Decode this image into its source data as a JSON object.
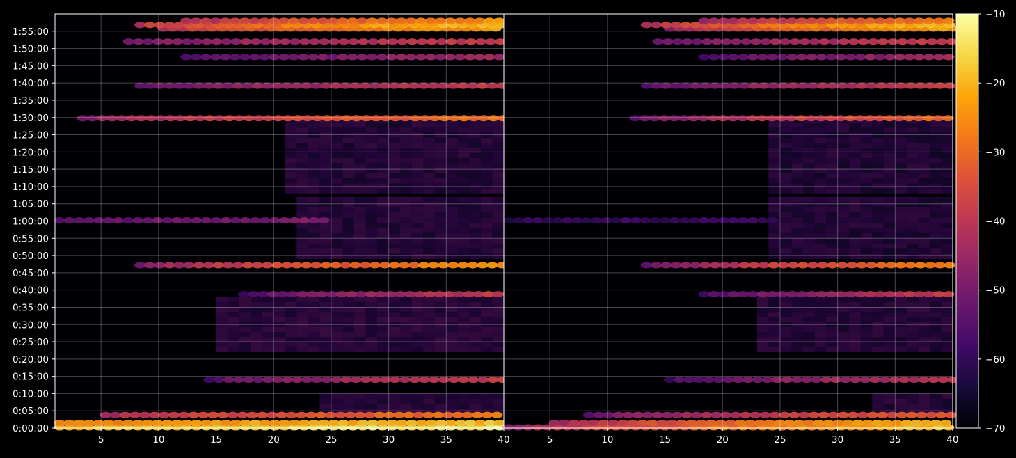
{
  "chart_data": {
    "type": "heatmap",
    "title": "",
    "colormap": "inferno",
    "background": "#000000",
    "grid": true,
    "xlim": [
      1,
      40
    ],
    "x_ticks": [
      5,
      10,
      15,
      20,
      25,
      30,
      35,
      40
    ],
    "y_ticks": [
      "0:00:00",
      "0:05:00",
      "0:10:00",
      "0:15:00",
      "0:20:00",
      "0:25:00",
      "0:30:00",
      "0:35:00",
      "0:40:00",
      "0:45:00",
      "0:50:00",
      "0:55:00",
      "1:00:00",
      "1:05:00",
      "1:10:00",
      "1:15:00",
      "1:20:00",
      "1:25:00",
      "1:30:00",
      "1:35:00",
      "1:40:00",
      "1:45:00",
      "1:50:00",
      "1:55:00"
    ],
    "colorbar": {
      "min": -70,
      "max": -10,
      "ticks": [
        -10,
        -20,
        -30,
        -40,
        -50,
        -60,
        -70
      ]
    },
    "panels": [
      {
        "name": "left",
        "bands": [
          {
            "t": 0.2,
            "x0": 1,
            "x1": 40,
            "peak": -12,
            "tail": -22
          },
          {
            "t": 1.5,
            "x0": 1,
            "x1": 40,
            "peak": -18,
            "tail": -28
          },
          {
            "t": 3.8,
            "x0": 5,
            "x1": 40,
            "peak": -28,
            "tail": -44
          },
          {
            "t": 14.0,
            "x0": 14,
            "x1": 40,
            "peak": -38,
            "tail": -56
          },
          {
            "t": 38.8,
            "x0": 17,
            "x1": 40,
            "peak": -38,
            "tail": -58
          },
          {
            "t": 47.2,
            "x0": 8,
            "x1": 40,
            "peak": -24,
            "tail": -50
          },
          {
            "t": 60.2,
            "x0": 1,
            "x1": 25,
            "peak": -48,
            "tail": -56
          },
          {
            "t": 89.8,
            "x0": 3,
            "x1": 40,
            "peak": -28,
            "tail": -50
          },
          {
            "t": 99.2,
            "x0": 8,
            "x1": 40,
            "peak": -38,
            "tail": -54
          },
          {
            "t": 107.5,
            "x0": 12,
            "x1": 40,
            "peak": -44,
            "tail": -58
          },
          {
            "t": 112.0,
            "x0": 7,
            "x1": 40,
            "peak": -38,
            "tail": -52
          },
          {
            "t": 115.8,
            "x0": 10,
            "x1": 40,
            "peak": -22,
            "tail": -42
          },
          {
            "t": 116.8,
            "x0": 8,
            "x1": 40,
            "peak": -18,
            "tail": -40
          },
          {
            "t": 118.0,
            "x0": 12,
            "x1": 40,
            "peak": -24,
            "tail": -44
          }
        ],
        "blocks": [
          {
            "t0": 4,
            "t1": 10,
            "x0": 24,
            "x1": 40,
            "level": -58
          },
          {
            "t0": 22,
            "t1": 38,
            "x0": 15,
            "x1": 40,
            "level": -57
          },
          {
            "t0": 49,
            "t1": 67,
            "x0": 22,
            "x1": 40,
            "level": -58
          },
          {
            "t0": 68,
            "t1": 90,
            "x0": 21,
            "x1": 40,
            "level": -58
          }
        ]
      },
      {
        "name": "right",
        "bands": [
          {
            "t": 0.2,
            "x0": 1,
            "x1": 40,
            "peak": -18,
            "tail": -48
          },
          {
            "t": 1.5,
            "x0": 5,
            "x1": 40,
            "peak": -20,
            "tail": -46
          },
          {
            "t": 3.8,
            "x0": 8,
            "x1": 40,
            "peak": -32,
            "tail": -54
          },
          {
            "t": 14.0,
            "x0": 15,
            "x1": 40,
            "peak": -40,
            "tail": -58
          },
          {
            "t": 38.8,
            "x0": 18,
            "x1": 40,
            "peak": -38,
            "tail": -58
          },
          {
            "t": 47.2,
            "x0": 13,
            "x1": 40,
            "peak": -26,
            "tail": -54
          },
          {
            "t": 60.2,
            "x0": 1,
            "x1": 25,
            "peak": -58,
            "tail": -62
          },
          {
            "t": 89.8,
            "x0": 12,
            "x1": 40,
            "peak": -30,
            "tail": -54
          },
          {
            "t": 99.2,
            "x0": 13,
            "x1": 40,
            "peak": -38,
            "tail": -56
          },
          {
            "t": 107.5,
            "x0": 18,
            "x1": 40,
            "peak": -44,
            "tail": -58
          },
          {
            "t": 112.0,
            "x0": 14,
            "x1": 40,
            "peak": -38,
            "tail": -54
          },
          {
            "t": 115.8,
            "x0": 15,
            "x1": 40,
            "peak": -22,
            "tail": -46
          },
          {
            "t": 116.8,
            "x0": 13,
            "x1": 40,
            "peak": -18,
            "tail": -44
          },
          {
            "t": 118.0,
            "x0": 18,
            "x1": 40,
            "peak": -26,
            "tail": -48
          }
        ],
        "blocks": [
          {
            "t0": 4,
            "t1": 10,
            "x0": 33,
            "x1": 40,
            "level": -58
          },
          {
            "t0": 22,
            "t1": 38,
            "x0": 23,
            "x1": 40,
            "level": -58
          },
          {
            "t0": 49,
            "t1": 67,
            "x0": 24,
            "x1": 40,
            "level": -59
          },
          {
            "t0": 68,
            "t1": 90,
            "x0": 24,
            "x1": 40,
            "level": -59
          }
        ]
      }
    ]
  }
}
